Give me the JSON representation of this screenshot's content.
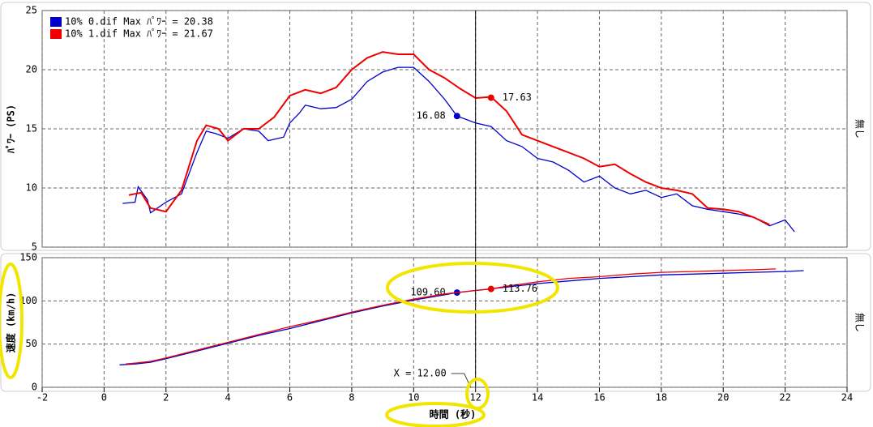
{
  "chart_data": [
    {
      "type": "line",
      "ylabel": "ﾊﾟﾜｰ (PS)",
      "side_label": "無し",
      "xlim": [
        -2,
        24
      ],
      "xticks": [
        -2,
        0,
        2,
        4,
        6,
        8,
        10,
        12,
        14,
        16,
        18,
        20,
        22,
        24
      ],
      "ylim": [
        5,
        25
      ],
      "yticks": [
        5,
        10,
        15,
        20,
        25
      ],
      "grid": true,
      "series": [
        {
          "name": "10% 0.dif Max ﾊﾟﾜｰ = 20.38",
          "color": "#0000cc",
          "x": [
            0.6,
            1.0,
            1.1,
            1.4,
            1.5,
            2.0,
            2.5,
            3.0,
            3.3,
            3.6,
            4.0,
            4.5,
            5.0,
            5.3,
            5.8,
            6.0,
            6.3,
            6.5,
            7.0,
            7.5,
            8.0,
            8.5,
            9.0,
            9.5,
            10.0,
            10.5,
            11.0,
            11.4,
            12.0,
            12.5,
            13.0,
            13.5,
            14.0,
            14.5,
            15.0,
            15.5,
            16.0,
            16.5,
            17.0,
            17.5,
            18.0,
            18.5,
            19.0,
            19.5,
            20.0,
            20.5,
            21.0,
            21.5,
            22.0,
            22.3
          ],
          "values": [
            8.7,
            8.8,
            10.1,
            9.0,
            7.9,
            8.8,
            9.5,
            13.0,
            14.8,
            14.6,
            14.2,
            15.0,
            14.8,
            14.0,
            14.3,
            15.5,
            16.3,
            17.0,
            16.7,
            16.8,
            17.5,
            19.0,
            19.8,
            20.2,
            20.2,
            19.0,
            17.5,
            16.08,
            15.5,
            15.2,
            14.0,
            13.5,
            12.5,
            12.2,
            11.5,
            10.5,
            11.0,
            10.0,
            9.5,
            9.8,
            9.2,
            9.5,
            8.5,
            8.2,
            8.0,
            7.8,
            7.5,
            6.8,
            7.3,
            6.3
          ],
          "point": {
            "x": 11.4,
            "y": 16.08,
            "label": "16.08"
          }
        },
        {
          "name": "10% 1.dif Max ﾊﾟﾜｰ = 21.67",
          "color": "#ee0000",
          "x": [
            0.8,
            1.2,
            1.5,
            2.0,
            2.5,
            3.0,
            3.3,
            3.7,
            4.0,
            4.5,
            5.0,
            5.5,
            6.0,
            6.5,
            7.0,
            7.5,
            8.0,
            8.5,
            9.0,
            9.5,
            10.0,
            10.5,
            11.0,
            11.5,
            12.0,
            12.5,
            13.0,
            13.5,
            14.0,
            14.5,
            15.0,
            15.5,
            16.0,
            16.5,
            17.0,
            17.5,
            18.0,
            18.5,
            19.0,
            19.5,
            20.0,
            20.5,
            21.0,
            21.5
          ],
          "values": [
            9.4,
            9.6,
            8.3,
            8.0,
            9.8,
            14.0,
            15.3,
            15.0,
            14.0,
            15.0,
            15.0,
            16.0,
            17.8,
            18.3,
            18.0,
            18.5,
            20.0,
            21.0,
            21.5,
            21.3,
            21.3,
            20.0,
            19.3,
            18.4,
            17.6,
            17.7,
            16.5,
            14.5,
            14.0,
            13.5,
            13.0,
            12.5,
            11.8,
            12.0,
            11.2,
            10.5,
            10.0,
            9.8,
            9.5,
            8.3,
            8.2,
            8.0,
            7.5,
            6.9
          ],
          "point": {
            "x": 12.5,
            "y": 17.63,
            "label": "17.63"
          }
        }
      ]
    },
    {
      "type": "line",
      "ylabel": "速度 (km/h)",
      "xlabel": "時間 (秒)",
      "side_label": "無し",
      "xlim": [
        -2,
        24
      ],
      "xticks": [
        -2,
        0,
        2,
        4,
        6,
        8,
        10,
        12,
        14,
        16,
        18,
        20,
        22,
        24
      ],
      "ylim": [
        0,
        150
      ],
      "yticks": [
        0,
        50,
        100,
        150
      ],
      "grid": true,
      "cursor": {
        "x": 12,
        "label": "X = 12.00"
      },
      "series": [
        {
          "color": "#0000cc",
          "x": [
            0.5,
            1,
            1.5,
            2,
            3,
            4,
            5,
            6,
            7,
            8,
            9,
            10,
            11,
            11.4,
            12,
            13,
            14,
            15,
            16,
            17,
            18,
            19,
            20,
            21,
            22,
            22.6
          ],
          "values": [
            26,
            27,
            29,
            33,
            42,
            51,
            60,
            68,
            77,
            86,
            94,
            101,
            107,
            109.6,
            112,
            116,
            120,
            123,
            126,
            128,
            130,
            131,
            132,
            133,
            134,
            135
          ],
          "point": {
            "x": 11.4,
            "y": 109.6,
            "label": "109.60"
          }
        },
        {
          "color": "#ee0000",
          "x": [
            0.7,
            1,
            1.5,
            2,
            3,
            4,
            5,
            6,
            7,
            8,
            9,
            10,
            11,
            12,
            12.5,
            13,
            14,
            15,
            16,
            17,
            18,
            19,
            20,
            21,
            21.7
          ],
          "values": [
            27,
            28,
            30,
            34,
            43,
            52,
            61,
            70,
            78,
            87,
            95,
            102,
            108,
            112,
            113.76,
            117,
            122,
            126,
            128,
            131,
            133,
            134,
            135,
            136,
            137
          ],
          "point": {
            "x": 12.5,
            "y": 113.76,
            "label": "113.76"
          }
        }
      ]
    }
  ]
}
